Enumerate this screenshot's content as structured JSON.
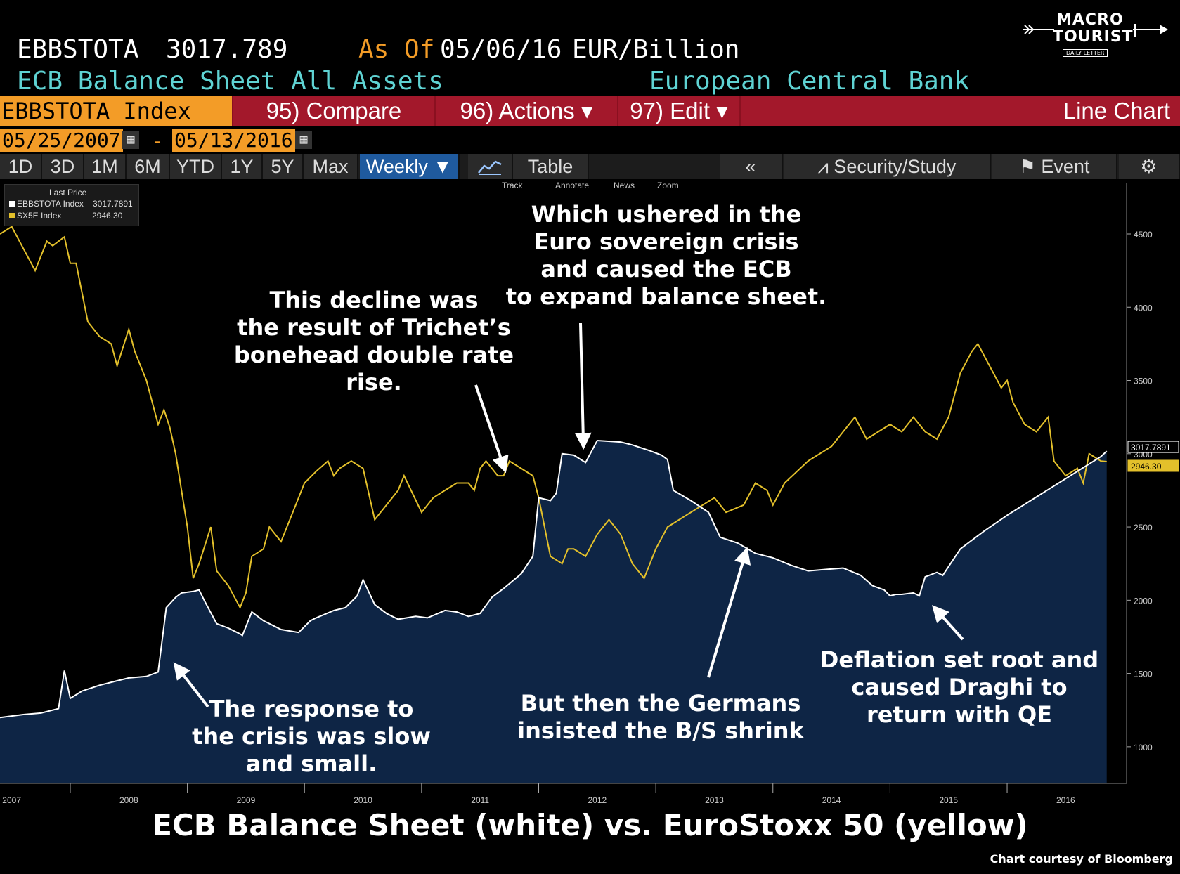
{
  "header": {
    "ticker": "EBBSTOTA",
    "value": "3017.789",
    "as_of_label": "As Of",
    "as_of_date": "05/06/16",
    "unit": "EUR/Billion",
    "description": "ECB Balance Sheet All Assets",
    "source": "European Central Bank"
  },
  "logo": {
    "line1": "MACRO",
    "line2": "TOURIST",
    "line3": "DAILY LETTER"
  },
  "toolbar": {
    "index_label": "EBBSTOTA Index",
    "compare": "95) Compare",
    "actions": "96) Actions ▾",
    "edit": "97) Edit ▾",
    "chart_type": "Line Chart"
  },
  "dates": {
    "start": "05/25/2007",
    "sep": "-",
    "end": "05/13/2016"
  },
  "periods": [
    "1D",
    "3D",
    "1M",
    "6M",
    "YTD",
    "1Y",
    "5Y",
    "Max"
  ],
  "frequency": "Weekly ▼",
  "table_label": "Table",
  "right_tools": {
    "back": "«",
    "security": "Security/Study",
    "event": "Event",
    "settings_icon": "gear-icon"
  },
  "chart_tools": [
    "Track",
    "Annotate",
    "News",
    "Zoom"
  ],
  "legend": {
    "title": "Last Price",
    "items": [
      {
        "name": "EBBSTOTA Index",
        "value": "3017.7891",
        "color": "#ffffff"
      },
      {
        "name": "SX5E Index",
        "value": "2946.30",
        "color": "#e3c02b"
      }
    ]
  },
  "annotations": {
    "a1": "This decline was\nthe result of Trichet’s\nbonehead double rate\nrise.",
    "a2": "Which ushered in the\nEuro sovereign crisis\nand caused the ECB\nto expand balance sheet.",
    "a3": "The response to\nthe crisis was slow\nand small.",
    "a4": "But then the Germans\ninsisted the B/S shrink",
    "a5": "Deflation set root and\ncaused Draghi to\nreturn with QE"
  },
  "title": "ECB Balance Sheet (white) vs. EuroStoxx 50 (yellow)",
  "credit": "Chart courtesy of Bloomberg",
  "colors": {
    "background": "#000000",
    "area": "#0e2545",
    "ecb_line": "#ffffff",
    "sx5e_line": "#e3c02b",
    "accent": "#f39c27"
  },
  "chart_data": {
    "type": "area",
    "xlabel": "",
    "ylabel": "",
    "ylim": [
      750,
      4850
    ],
    "xlim": [
      2006.9,
      2016.4
    ],
    "x_ticks": [
      2007,
      2008,
      2009,
      2010,
      2011,
      2012,
      2013,
      2014,
      2015,
      2016
    ],
    "y_ticks": [
      1000,
      1500,
      2000,
      2500,
      3000,
      3500,
      4000,
      4500
    ],
    "last_labels": [
      "3017.7891",
      "2946.30"
    ],
    "grid": false,
    "series": [
      {
        "name": "EBBSTOTA Index",
        "x": [
          2006.9,
          2007.1,
          2007.25,
          2007.4,
          2007.45,
          2007.5,
          2007.6,
          2007.75,
          2007.9,
          2008.0,
          2008.15,
          2008.25,
          2008.28,
          2008.32,
          2008.4,
          2008.45,
          2008.55,
          2008.6,
          2008.65,
          2008.75,
          2008.85,
          2008.95,
          2008.97,
          2009.05,
          2009.15,
          2009.3,
          2009.45,
          2009.55,
          2009.6,
          2009.75,
          2009.85,
          2009.95,
          2010.0,
          2010.1,
          2010.2,
          2010.3,
          2010.45,
          2010.55,
          2010.7,
          2010.8,
          2010.9,
          2011.0,
          2011.1,
          2011.2,
          2011.35,
          2011.45,
          2011.5,
          2011.6,
          2011.65,
          2011.7,
          2011.8,
          2011.9,
          2012.0,
          2012.2,
          2012.3,
          2012.45,
          2012.55,
          2012.6,
          2012.65,
          2012.8,
          2012.95,
          2013.05,
          2013.2,
          2013.35,
          2013.5,
          2013.65,
          2013.8,
          2013.95,
          2014.1,
          2014.25,
          2014.35,
          2014.45,
          2014.5,
          2014.55,
          2014.6,
          2014.7,
          2014.75,
          2014.8,
          2014.9,
          2014.95,
          2015.1,
          2015.3,
          2015.5,
          2015.7,
          2015.9,
          2016.1,
          2016.3,
          2016.35
        ],
        "values": [
          1200,
          1220,
          1230,
          1260,
          1520,
          1330,
          1380,
          1420,
          1450,
          1470,
          1480,
          1510,
          1700,
          1950,
          2020,
          2050,
          2060,
          2070,
          1990,
          1840,
          1810,
          1770,
          1760,
          1920,
          1860,
          1800,
          1780,
          1860,
          1880,
          1930,
          1950,
          2030,
          2140,
          1970,
          1910,
          1870,
          1890,
          1880,
          1930,
          1920,
          1890,
          1910,
          2020,
          2080,
          2180,
          2300,
          2700,
          2680,
          2730,
          3000,
          2990,
          2940,
          3090,
          3080,
          3060,
          3020,
          2990,
          2960,
          2750,
          2680,
          2600,
          2430,
          2390,
          2320,
          2290,
          2240,
          2200,
          2210,
          2220,
          2170,
          2100,
          2070,
          2030,
          2040,
          2040,
          2050,
          2030,
          2160,
          2190,
          2170,
          2350,
          2470,
          2580,
          2680,
          2780,
          2880,
          2980,
          3017.79
        ]
      },
      {
        "name": "SX5E Index",
        "x": [
          2006.9,
          2007.0,
          2007.1,
          2007.2,
          2007.3,
          2007.35,
          2007.45,
          2007.5,
          2007.55,
          2007.65,
          2007.75,
          2007.85,
          2007.9,
          2008.0,
          2008.05,
          2008.15,
          2008.25,
          2008.3,
          2008.35,
          2008.4,
          2008.5,
          2008.55,
          2008.6,
          2008.7,
          2008.75,
          2008.85,
          2008.95,
          2009.0,
          2009.05,
          2009.15,
          2009.2,
          2009.3,
          2009.4,
          2009.5,
          2009.6,
          2009.7,
          2009.75,
          2009.8,
          2009.9,
          2010.0,
          2010.1,
          2010.2,
          2010.3,
          2010.35,
          2010.5,
          2010.6,
          2010.7,
          2010.8,
          2010.9,
          2010.95,
          2011.0,
          2011.05,
          2011.1,
          2011.15,
          2011.2,
          2011.25,
          2011.35,
          2011.45,
          2011.5,
          2011.6,
          2011.7,
          2011.75,
          2011.8,
          2011.9,
          2012.0,
          2012.1,
          2012.2,
          2012.3,
          2012.4,
          2012.45,
          2012.5,
          2012.6,
          2012.7,
          2012.8,
          2012.9,
          2013.0,
          2013.1,
          2013.25,
          2013.35,
          2013.45,
          2013.5,
          2013.6,
          2013.8,
          2014.0,
          2014.1,
          2014.2,
          2014.3,
          2014.4,
          2014.5,
          2014.6,
          2014.7,
          2014.8,
          2014.9,
          2015.0,
          2015.1,
          2015.2,
          2015.25,
          2015.35,
          2015.45,
          2015.5,
          2015.55,
          2015.65,
          2015.75,
          2015.85,
          2015.9,
          2016.0,
          2016.1,
          2016.15,
          2016.2,
          2016.3,
          2016.35
        ],
        "values": [
          4500,
          4550,
          4400,
          4250,
          4450,
          4420,
          4480,
          4300,
          4300,
          3900,
          3800,
          3750,
          3600,
          3850,
          3700,
          3500,
          3200,
          3300,
          3180,
          3000,
          2500,
          2150,
          2250,
          2500,
          2200,
          2100,
          1950,
          2050,
          2300,
          2350,
          2500,
          2400,
          2600,
          2800,
          2880,
          2950,
          2850,
          2900,
          2950,
          2900,
          2550,
          2650,
          2750,
          2850,
          2600,
          2700,
          2750,
          2800,
          2800,
          2750,
          2900,
          2950,
          2900,
          2850,
          2850,
          2950,
          2900,
          2850,
          2700,
          2300,
          2250,
          2350,
          2350,
          2300,
          2450,
          2550,
          2450,
          2250,
          2150,
          2250,
          2350,
          2500,
          2550,
          2600,
          2650,
          2700,
          2600,
          2650,
          2800,
          2750,
          2650,
          2800,
          2950,
          3050,
          3150,
          3250,
          3100,
          3150,
          3200,
          3150,
          3250,
          3150,
          3100,
          3250,
          3550,
          3700,
          3750,
          3600,
          3450,
          3500,
          3350,
          3200,
          3150,
          3250,
          2950,
          2850,
          2900,
          2800,
          3000,
          2950,
          2946.3
        ]
      }
    ]
  }
}
